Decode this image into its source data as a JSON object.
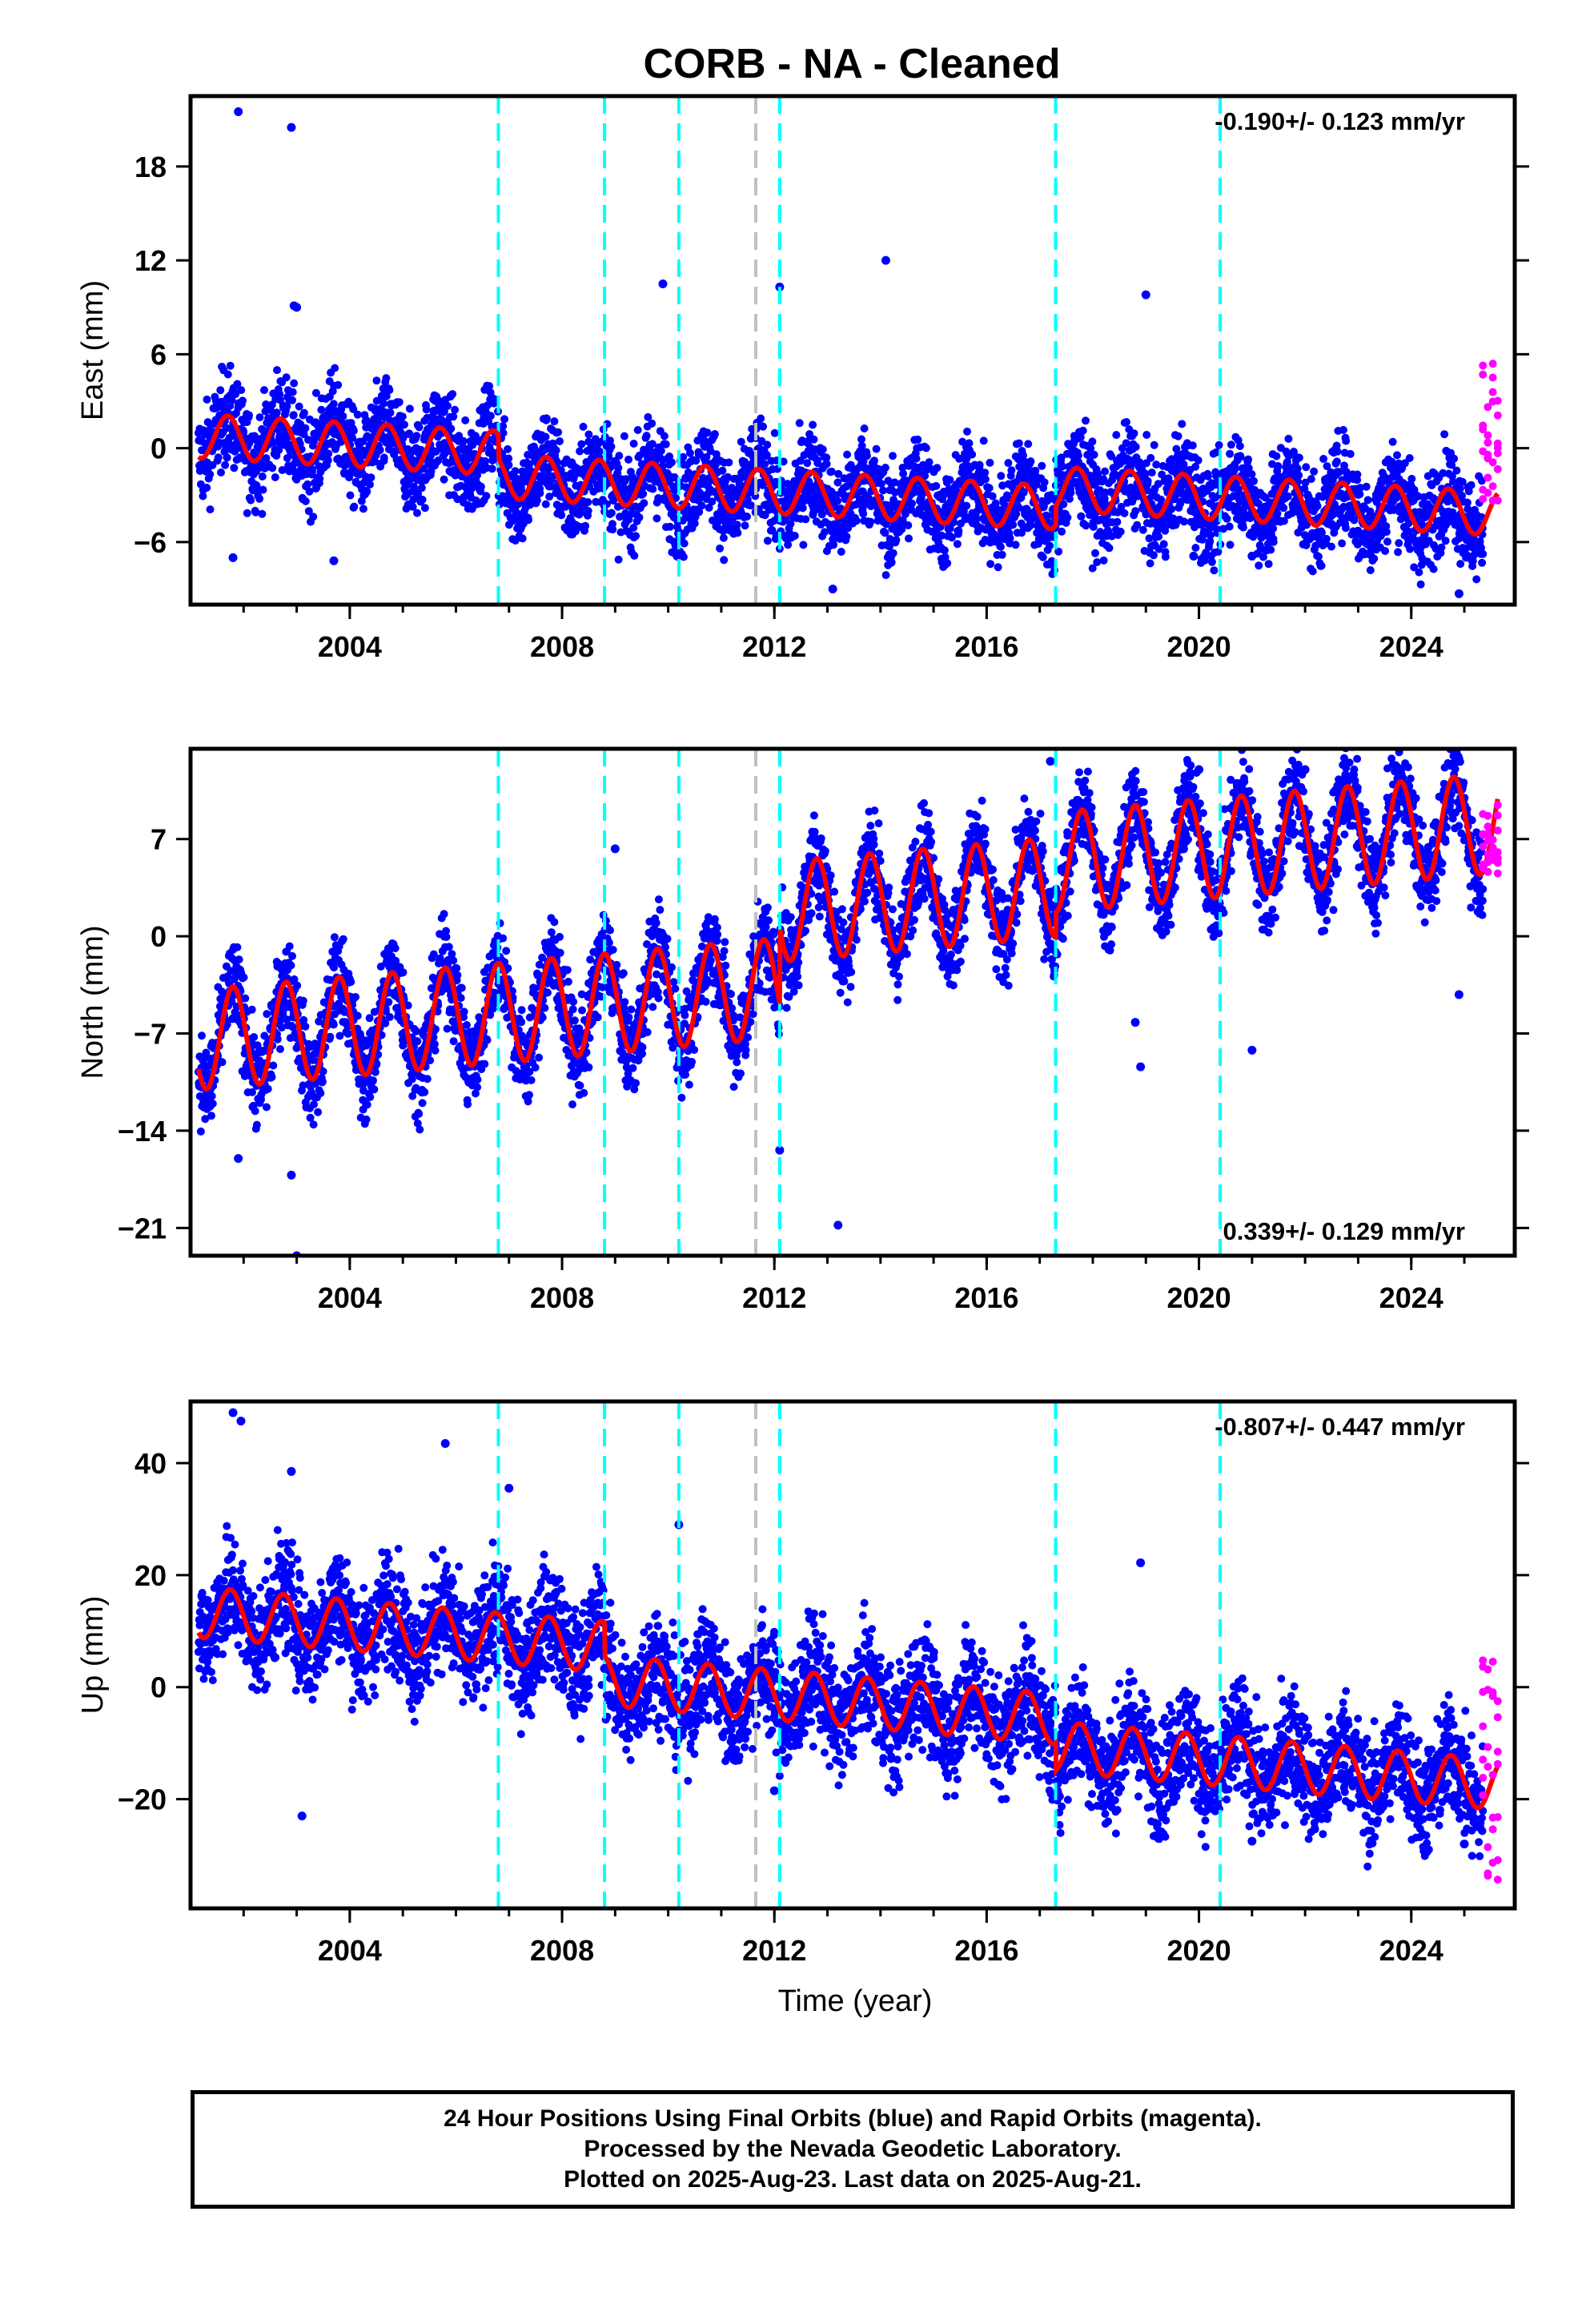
{
  "title": "CORB  - NA - Cleaned",
  "colors": {
    "final_orbits": "#0000ff",
    "rapid_orbits": "#ff00ff",
    "model_fit": "#ff0000",
    "equipment_change": "#00ffff",
    "other_event": "#c0c0c0",
    "frame": "#000000"
  },
  "chart_data": [
    {
      "type": "scatter",
      "component": "east",
      "ylabel": "East (mm)",
      "xlabel": "",
      "xlim": [
        2001.0,
        2025.95
      ],
      "ylim": [
        -10,
        22.5
      ],
      "x_ticks": [
        2004,
        2008,
        2012,
        2016,
        2020,
        2024
      ],
      "y_ticks": [
        -6,
        0,
        6,
        12,
        18
      ],
      "rate_text": "-0.190+/- 0.123 mm/yr",
      "rate_position": "top-right",
      "model": {
        "offset": 0.8,
        "trend_mm_per_yr": -0.19,
        "annual_amplitude": 1.4,
        "phase_year_fraction": 0.45,
        "step_offsets": [
          {
            "year": 2006.8,
            "step": -1.5
          },
          {
            "year": 2017.3,
            "step": 1.2
          }
        ]
      },
      "scatter_noise_mm": 1.5,
      "outliers": [
        [
          2001.9,
          21.5
        ],
        [
          2002.9,
          20.5
        ],
        [
          2002.95,
          9.1
        ],
        [
          2003.0,
          9.0
        ],
        [
          2009.9,
          10.5
        ],
        [
          2012.1,
          10.3
        ],
        [
          2014.1,
          12.0
        ],
        [
          2019.0,
          9.8
        ],
        [
          2001.8,
          -7.0
        ],
        [
          2003.7,
          -7.2
        ],
        [
          2013.1,
          -9.0
        ],
        [
          2014.2,
          -7.3
        ],
        [
          2019.9,
          -6.9
        ],
        [
          2021.0,
          -6.9
        ],
        [
          2024.9,
          -9.3
        ]
      ],
      "vlines_cyan": [
        2006.8,
        2008.8,
        2010.2,
        2012.1,
        2017.3,
        2020.4
      ],
      "vlines_gray": [
        2011.65
      ],
      "rapid_points": {
        "x_start": 2025.35,
        "x_end": 2025.63,
        "y_min": -3.5,
        "y_max": 5.5
      }
    },
    {
      "type": "scatter",
      "component": "north",
      "ylabel": "North (mm)",
      "xlabel": "",
      "xlim": [
        2001.0,
        2025.95
      ],
      "ylim": [
        -23,
        13.5
      ],
      "x_ticks": [
        2004,
        2008,
        2012,
        2016,
        2020,
        2024
      ],
      "y_ticks": [
        -21,
        -14,
        -7,
        0,
        7
      ],
      "rate_text": "0.339+/- 0.129 mm/yr",
      "rate_position": "bottom-right",
      "model": {
        "offset": -7.5,
        "trend_mm_per_yr": 0.339,
        "annual_amplitude": 3.6,
        "phase_year_fraction": 0.55,
        "step_offsets": [
          {
            "year": 2012.1,
            "step": 5.5
          },
          {
            "year": 2017.3,
            "step": 1.8
          }
        ]
      },
      "scatter_noise_mm": 1.6,
      "outliers": [
        [
          2002.9,
          -17.2
        ],
        [
          2003.0,
          -23.0
        ],
        [
          2001.9,
          -16.0
        ],
        [
          2009.0,
          6.3
        ],
        [
          2012.1,
          -15.4
        ],
        [
          2013.2,
          -20.8
        ],
        [
          2017.2,
          12.6
        ],
        [
          2018.8,
          -6.2
        ],
        [
          2018.9,
          -9.4
        ],
        [
          2021.0,
          -8.2
        ],
        [
          2024.9,
          -4.2
        ],
        [
          2022.0,
          12.0
        ],
        [
          2020.0,
          12.0
        ]
      ],
      "vlines_cyan": [
        2006.8,
        2008.8,
        2010.2,
        2012.1,
        2017.3,
        2020.4
      ],
      "vlines_gray": [
        2011.65
      ],
      "rapid_points": {
        "x_start": 2025.35,
        "x_end": 2025.63,
        "y_min": 4.5,
        "y_max": 9.5
      }
    },
    {
      "type": "scatter",
      "component": "up",
      "ylabel": "Up (mm)",
      "xlabel": "Time (year)",
      "xlim": [
        2001.0,
        2025.95
      ],
      "ylim": [
        -39.5,
        51
      ],
      "x_ticks": [
        2004,
        2008,
        2012,
        2016,
        2020,
        2024
      ],
      "y_ticks": [
        -20,
        0,
        20,
        40
      ],
      "rate_text": "-0.807+/- 0.447 mm/yr",
      "rate_position": "top-right",
      "model": {
        "offset": 13.5,
        "trend_mm_per_yr": -0.807,
        "annual_amplitude": 4.5,
        "phase_year_fraction": 0.5,
        "step_offsets": [
          {
            "year": 2008.8,
            "step": -6.0
          },
          {
            "year": 2017.3,
            "step": -5.0
          }
        ]
      },
      "scatter_noise_mm": 5.0,
      "outliers": [
        [
          2001.8,
          49.0
        ],
        [
          2001.95,
          47.5
        ],
        [
          2002.9,
          38.5
        ],
        [
          2005.8,
          43.5
        ],
        [
          2007.0,
          35.5
        ],
        [
          2010.2,
          29.0
        ],
        [
          2018.9,
          22.2
        ],
        [
          2003.1,
          -23.0
        ],
        [
          2012.0,
          -18.5
        ],
        [
          2021.0,
          -27.5
        ],
        [
          2025.0,
          -28.0
        ]
      ],
      "vlines_cyan": [
        2006.8,
        2008.8,
        2010.2,
        2012.1,
        2017.3,
        2020.4
      ],
      "vlines_gray": [
        2011.65
      ],
      "rapid_points": {
        "x_start": 2025.35,
        "x_end": 2025.63,
        "y_min": -37,
        "y_max": 6
      }
    }
  ],
  "footer": {
    "line1": "24 Hour Positions Using Final Orbits (blue) and Rapid Orbits (magenta).",
    "line2": "Processed by the Nevada Geodetic Laboratory.",
    "line3": "Plotted on 2025-Aug-23. Last data on 2025-Aug-21."
  }
}
